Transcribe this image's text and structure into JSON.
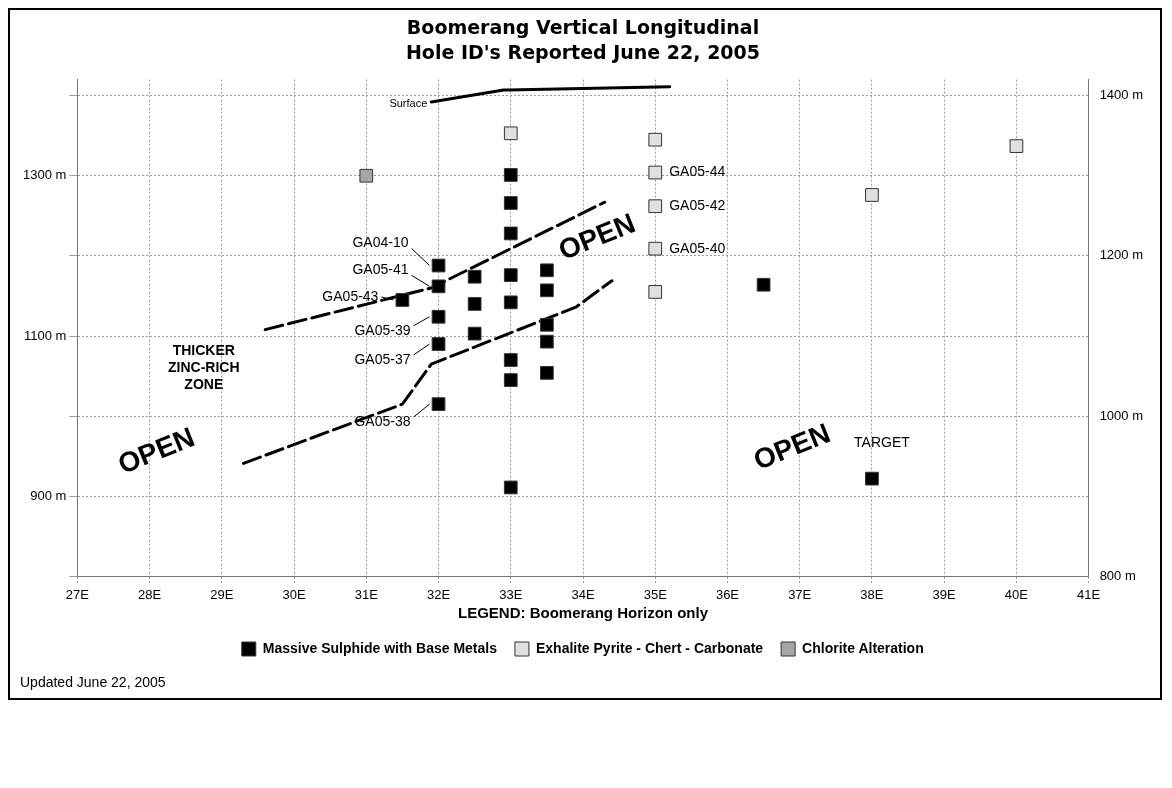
{
  "chart_data": {
    "type": "scatter",
    "title": "Boomerang Vertical Longitudinal",
    "subtitle": "Hole ID's Reported June 22, 2005",
    "legend_title": "LEGEND: Boomerang Horizon only",
    "legend": "bottom",
    "grid": true,
    "marker": "square",
    "xlim": [
      27,
      41
    ],
    "xticks": [
      {
        "value": 27,
        "label": "27E"
      },
      {
        "value": 28,
        "label": "28E"
      },
      {
        "value": 29,
        "label": "29E"
      },
      {
        "value": 30,
        "label": "30E"
      },
      {
        "value": 31,
        "label": "31E"
      },
      {
        "value": 32,
        "label": "32E"
      },
      {
        "value": 33,
        "label": "33E"
      },
      {
        "value": 34,
        "label": "34E"
      },
      {
        "value": 35,
        "label": "35E"
      },
      {
        "value": 36,
        "label": "36E"
      },
      {
        "value": 37,
        "label": "37E"
      },
      {
        "value": 38,
        "label": "38E"
      },
      {
        "value": 39,
        "label": "39E"
      },
      {
        "value": 40,
        "label": "40E"
      },
      {
        "value": 41,
        "label": "41E"
      }
    ],
    "ylim": [
      800,
      1420
    ],
    "yticks": [
      {
        "value": 800,
        "label": null
      },
      {
        "value": 900,
        "label": "900 m"
      },
      {
        "value": 1000,
        "label": null
      },
      {
        "value": 1100,
        "label": "1100 m"
      },
      {
        "value": 1200,
        "label": null
      },
      {
        "value": 1300,
        "label": "1300 m"
      },
      {
        "value": 1400,
        "label": null
      }
    ],
    "y2lim": [
      800,
      1420
    ],
    "y2ticks": [
      {
        "value": 800,
        "label": "800 m"
      },
      {
        "value": 900,
        "label": null
      },
      {
        "value": 1000,
        "label": "1000 m"
      },
      {
        "value": 1100,
        "label": null
      },
      {
        "value": 1200,
        "label": "1200 m"
      },
      {
        "value": 1300,
        "label": null
      },
      {
        "value": 1400,
        "label": "1400 m"
      }
    ],
    "series": [
      {
        "name": "Massive Sulphide with Base Metals",
        "color": "#000000",
        "x": [
          31.5,
          32,
          32,
          32,
          32,
          32,
          32.5,
          32.5,
          32.5,
          33,
          33,
          33,
          33,
          33,
          33,
          33,
          33,
          33.5,
          33.5,
          33.5,
          33.5,
          33.5,
          36.5,
          38
        ],
        "values": [
          1145,
          1188,
          1162,
          1124,
          1090,
          1015,
          1174,
          1140,
          1103,
          1301,
          1266,
          1228,
          1176,
          1142,
          1070,
          1045,
          911,
          1182,
          1157,
          1114,
          1093,
          1054,
          1164,
          922
        ]
      },
      {
        "name": "Exhalite Pyrite - Chert - Carbonate",
        "color": "#e0e0e0",
        "x": [
          33,
          35,
          35,
          35,
          35,
          35,
          38,
          40
        ],
        "values": [
          1353,
          1345,
          1304,
          1262,
          1209,
          1155,
          1276,
          1337
        ]
      },
      {
        "name": "Chlorite Alteration",
        "color": "#a6a6a6",
        "x": [
          31
        ],
        "values": [
          1300
        ]
      },
      {
        "name": "Surface",
        "type": "line",
        "color": "#000000",
        "marker": "none",
        "line_style": "solid",
        "x": [
          31.9,
          32.9,
          35.2
        ],
        "values": [
          1392,
          1407,
          1411
        ]
      },
      {
        "type": "line",
        "color": "#000000",
        "marker": "none",
        "line_style": "dashed",
        "x": [
          29.6,
          31.9,
          34.3
        ],
        "values": [
          1108,
          1160,
          1267
        ]
      },
      {
        "type": "line",
        "color": "#000000",
        "marker": "none",
        "line_style": "dashed",
        "x": [
          29.3,
          31.5,
          31.9,
          33.9,
          34.4
        ],
        "values": [
          941,
          1015,
          1065,
          1136,
          1169
        ]
      }
    ],
    "annotations": [
      {
        "text": "GA04-10",
        "x": 32,
        "y": 1188
      },
      {
        "text": "GA05-41",
        "x": 32,
        "y": 1162
      },
      {
        "text": "GA05-43",
        "x": 31.5,
        "y": 1145
      },
      {
        "text": "GA05-39",
        "x": 32,
        "y": 1124
      },
      {
        "text": "GA05-37",
        "x": 32,
        "y": 1090
      },
      {
        "text": "GA05-38",
        "x": 32,
        "y": 1015
      },
      {
        "text": "GA05-44",
        "x": 35,
        "y": 1304
      },
      {
        "text": "GA05-42",
        "x": 35,
        "y": 1262
      },
      {
        "text": "GA05-40",
        "x": 35,
        "y": 1209
      },
      {
        "text": "TARGET",
        "x": 38,
        "y": 922
      },
      "OPEN",
      "OPEN",
      "OPEN",
      "THICKER\nZINC-RICH\nZONE",
      "Updated June 22, 2005"
    ]
  }
}
